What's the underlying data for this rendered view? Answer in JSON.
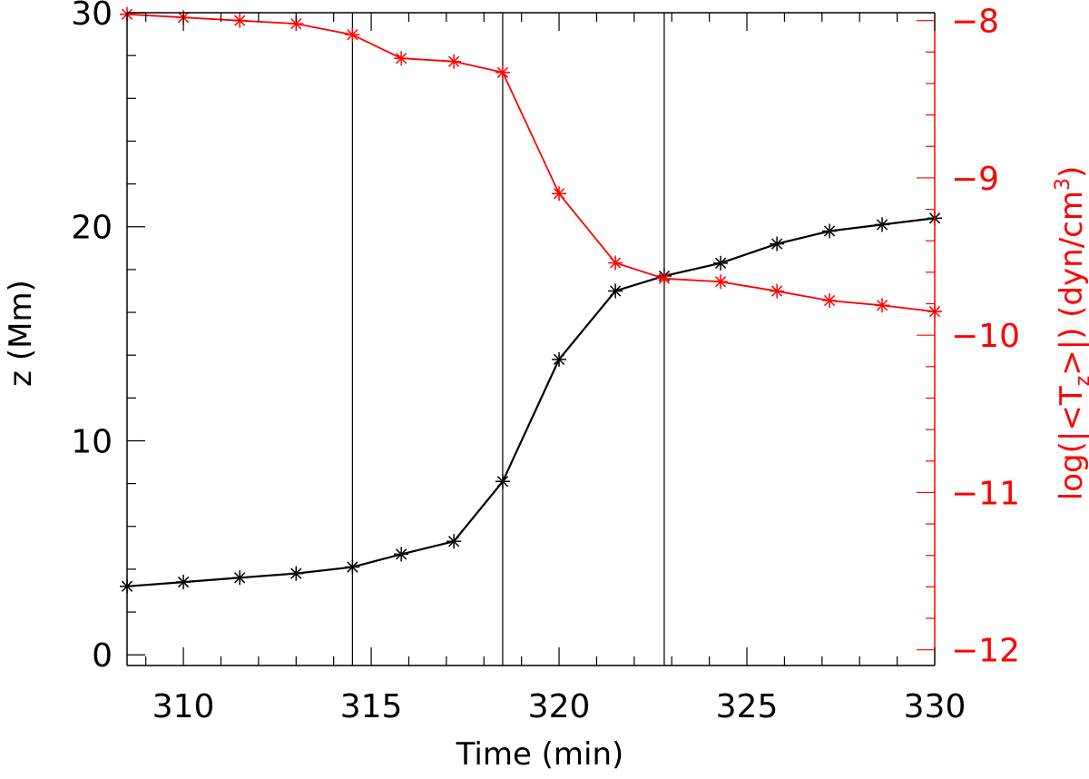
{
  "chart_data": {
    "type": "line",
    "xlabel": "Time (min)",
    "ylabel_left": "z (Mm)",
    "ylabel_right": "log(|<T",
    "ylabel_right_sub": "z",
    "ylabel_right_tail": ">|) (dyn/cm",
    "ylabel_right_sup": "3",
    "ylabel_right_end": ")",
    "xlim": [
      308.5,
      330
    ],
    "ylim_left": [
      -0.5,
      30
    ],
    "ylim_right": [
      -12.1,
      -7.95
    ],
    "x_ticks": [
      310,
      315,
      320,
      325,
      330
    ],
    "x_tick_labels": [
      "310",
      "315",
      "320",
      "325",
      "330"
    ],
    "y_left_ticks": [
      0,
      10,
      20,
      30
    ],
    "y_left_tick_labels": [
      "0",
      "10",
      "20",
      "30"
    ],
    "y_right_ticks": [
      -12,
      -11,
      -10,
      -9,
      -8
    ],
    "y_right_tick_labels": [
      "−12",
      "−11",
      "−10",
      "−9",
      "−8"
    ],
    "vertical_lines_x": [
      314.5,
      318.5,
      322.8
    ],
    "series": [
      {
        "axis": "left",
        "color": "#000000",
        "marker": "asterisk",
        "x": [
          308.5,
          310,
          311.5,
          313,
          314.5,
          315.8,
          317.2,
          318.5,
          320,
          321.5,
          322.8,
          324.3,
          325.8,
          327.2,
          328.6,
          330
        ],
        "y": [
          3.2,
          3.4,
          3.6,
          3.8,
          4.1,
          4.7,
          5.3,
          8.1,
          13.8,
          17.0,
          17.7,
          18.3,
          19.2,
          19.8,
          20.1,
          20.4
        ]
      },
      {
        "axis": "right",
        "color": "#ff0000",
        "marker": "asterisk",
        "x": [
          308.5,
          310,
          311.5,
          313,
          314.5,
          315.8,
          317.2,
          318.5,
          320,
          321.5,
          322.8,
          324.3,
          325.8,
          327.2,
          328.6,
          330
        ],
        "y": [
          -7.96,
          -7.98,
          -8.0,
          -8.02,
          -8.09,
          -8.24,
          -8.26,
          -8.33,
          -9.1,
          -9.54,
          -9.64,
          -9.66,
          -9.72,
          -9.78,
          -9.81,
          -9.85
        ]
      }
    ]
  }
}
